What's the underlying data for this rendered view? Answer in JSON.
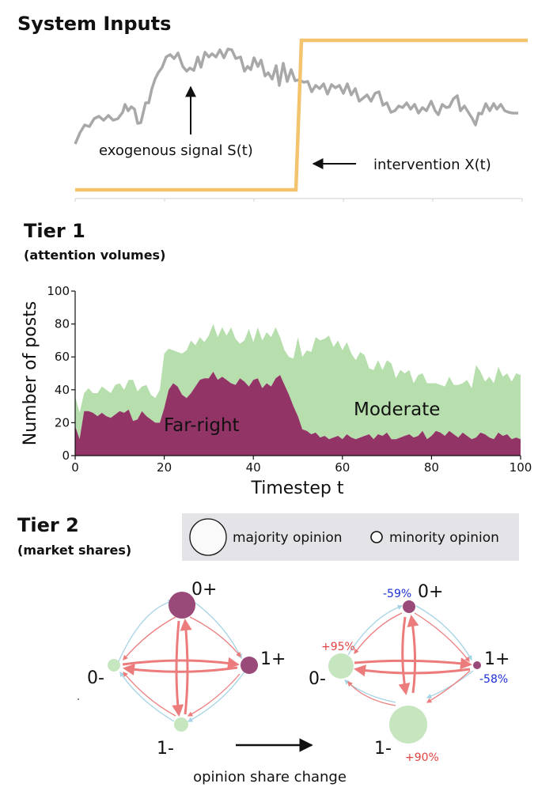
{
  "colors": {
    "farright": "#933467",
    "moderate": "#b6dfad",
    "signal": "#a8a8a8",
    "intervention": "#f3c36e",
    "edge_red": "#ec7c7c",
    "edge_blue": "#a6d4e6",
    "node_dark": "#9a4a78",
    "node_light": "#c6e6bf",
    "increase_pct": "#e0403f",
    "decrease_pct": "#1b2fd6",
    "legend_bg": "#e4e4e8"
  },
  "system_inputs": {
    "heading": "System Inputs",
    "signal_label": "exogenous signal S(t)",
    "intervention_label": "intervention X(t)"
  },
  "tier1": {
    "heading": "Tier 1",
    "subheading": "(attention volumes)"
  },
  "tier2": {
    "heading": "Tier 2",
    "subheading": "(market shares)",
    "legend": {
      "majority": "majority opinion",
      "minority": "minority opinion"
    },
    "before": {
      "nodes": [
        {
          "id": "0+",
          "label": "0+",
          "share": "large",
          "color": "dark"
        },
        {
          "id": "1+",
          "label": "1+",
          "share": "medium",
          "color": "dark"
        },
        {
          "id": "0-",
          "label": "0-",
          "share": "small",
          "color": "light"
        },
        {
          "id": "1-",
          "label": "1-",
          "share": "small",
          "color": "light"
        }
      ]
    },
    "after": {
      "nodes": [
        {
          "id": "0+",
          "label": "0+",
          "share": "small",
          "color": "dark",
          "change": "-59%"
        },
        {
          "id": "1+",
          "label": "1+",
          "share": "tiny",
          "color": "dark",
          "change": "-58%"
        },
        {
          "id": "0-",
          "label": "0-",
          "share": "medium",
          "color": "light",
          "change": "+95%"
        },
        {
          "id": "1-",
          "label": "1-",
          "share": "large",
          "color": "light",
          "change": "+90%"
        }
      ]
    },
    "arrow_label": "opinion share change"
  },
  "chart_data": {
    "type": "area",
    "title": "",
    "xlabel": "Timestep t",
    "ylabel": "Number of posts",
    "xlim": [
      0,
      100
    ],
    "ylim": [
      0,
      100
    ],
    "xticks": [
      0,
      20,
      40,
      60,
      80,
      100
    ],
    "yticks": [
      0,
      20,
      40,
      60,
      80,
      100
    ],
    "x": [
      0,
      1,
      2,
      3,
      4,
      5,
      6,
      7,
      8,
      9,
      10,
      11,
      12,
      13,
      14,
      15,
      16,
      17,
      18,
      19,
      20,
      21,
      22,
      23,
      24,
      25,
      26,
      27,
      28,
      29,
      30,
      31,
      32,
      33,
      34,
      35,
      36,
      37,
      38,
      39,
      40,
      41,
      42,
      43,
      44,
      45,
      46,
      47,
      48,
      49,
      50,
      51,
      52,
      53,
      54,
      55,
      56,
      57,
      58,
      59,
      60,
      61,
      62,
      63,
      64,
      65,
      66,
      67,
      68,
      69,
      70,
      71,
      72,
      73,
      74,
      75,
      76,
      77,
      78,
      79,
      80,
      81,
      82,
      83,
      84,
      85,
      86,
      87,
      88,
      89,
      90,
      91,
      92,
      93,
      94,
      95,
      96,
      97,
      98,
      99,
      100
    ],
    "series": [
      {
        "name": "Far-right",
        "stack_order": 0,
        "values": [
          18,
          10,
          27,
          27,
          26,
          24,
          26,
          24,
          23,
          25,
          27,
          26,
          28,
          21,
          22,
          27,
          24,
          22,
          20,
          20,
          29,
          40,
          44,
          42,
          37,
          35,
          38,
          42,
          46,
          47,
          47,
          51,
          46,
          48,
          46,
          44,
          43,
          47,
          45,
          42,
          46,
          47,
          41,
          44,
          42,
          47,
          49,
          43,
          37,
          30,
          24,
          16,
          15,
          13,
          14,
          11,
          12,
          10,
          11,
          12,
          10,
          13,
          11,
          10,
          11,
          12,
          13,
          10,
          13,
          12,
          14,
          10,
          10,
          11,
          12,
          13,
          11,
          12,
          15,
          10,
          12,
          15,
          14,
          12,
          15,
          13,
          11,
          14,
          12,
          10,
          11,
          14,
          13,
          11,
          10,
          14,
          12,
          13,
          10,
          11,
          10
        ]
      },
      {
        "name": "Moderate",
        "stack_order": 1,
        "values": [
          36,
          26,
          38,
          41,
          38,
          38,
          42,
          40,
          38,
          43,
          44,
          40,
          46,
          46,
          39,
          42,
          43,
          37,
          35,
          40,
          62,
          65,
          64,
          63,
          62,
          64,
          70,
          67,
          72,
          69,
          73,
          80,
          72,
          78,
          73,
          78,
          71,
          68,
          70,
          77,
          69,
          78,
          70,
          75,
          72,
          78,
          72,
          64,
          60,
          59,
          72,
          60,
          64,
          63,
          72,
          70,
          71,
          73,
          66,
          70,
          64,
          69,
          62,
          58,
          63,
          61,
          53,
          52,
          58,
          52,
          58,
          56,
          47,
          52,
          50,
          52,
          44,
          49,
          50,
          44,
          44,
          44,
          43,
          42,
          48,
          43,
          43,
          44,
          46,
          41,
          55,
          51,
          45,
          48,
          44,
          54,
          48,
          50,
          45,
          50,
          49
        ]
      }
    ],
    "series_labels": {
      "farright": "Far-right",
      "moderate": "Moderate"
    }
  }
}
